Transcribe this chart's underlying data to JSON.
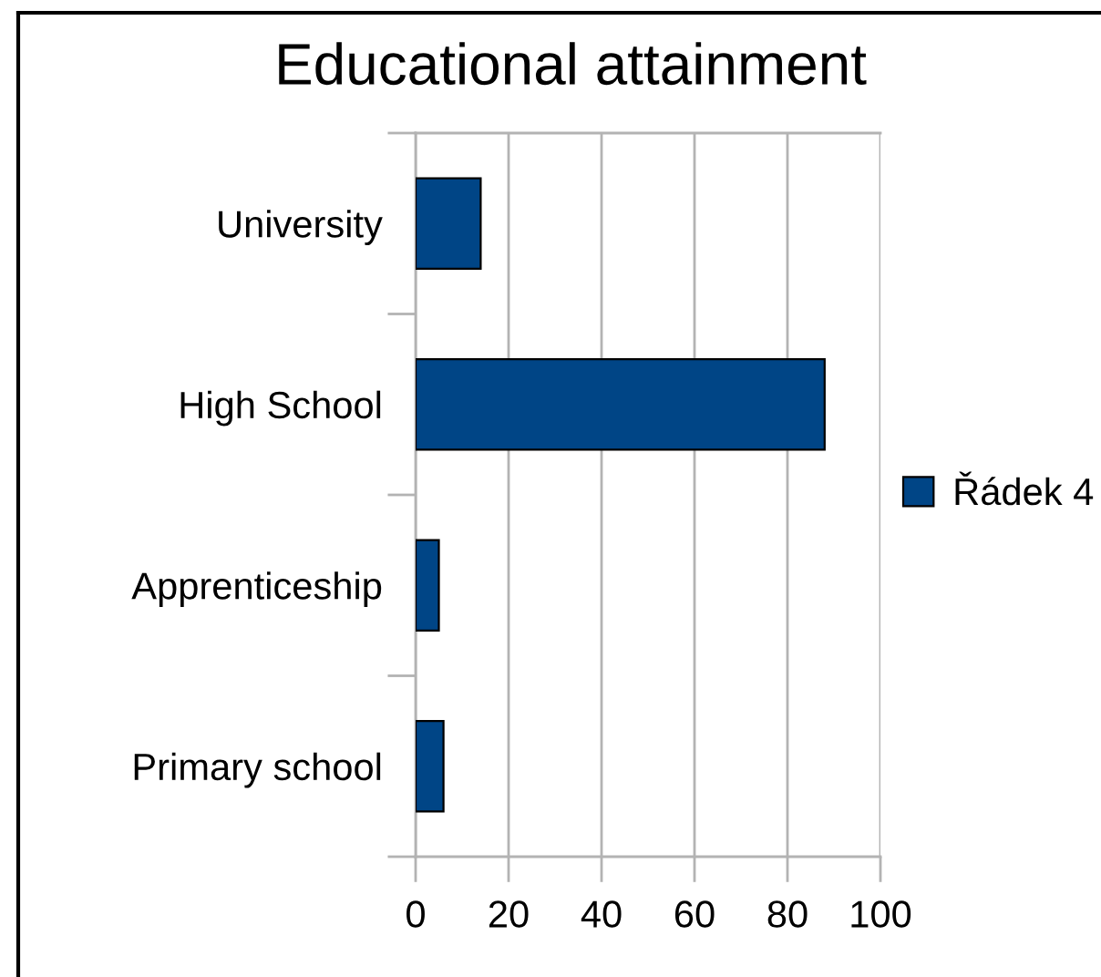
{
  "chart_data": {
    "type": "bar",
    "orientation": "horizontal",
    "title": "Educational attainment",
    "categories": [
      "University",
      "High School",
      "Apprenticeship",
      "Primary school"
    ],
    "series": [
      {
        "name": "Řádek 4",
        "color": "#004586",
        "values": [
          14,
          88,
          5,
          6
        ]
      }
    ],
    "xlim": [
      0,
      100
    ],
    "xticks": [
      0,
      20,
      40,
      60,
      80,
      100
    ],
    "grid": "x",
    "legend": "right"
  }
}
